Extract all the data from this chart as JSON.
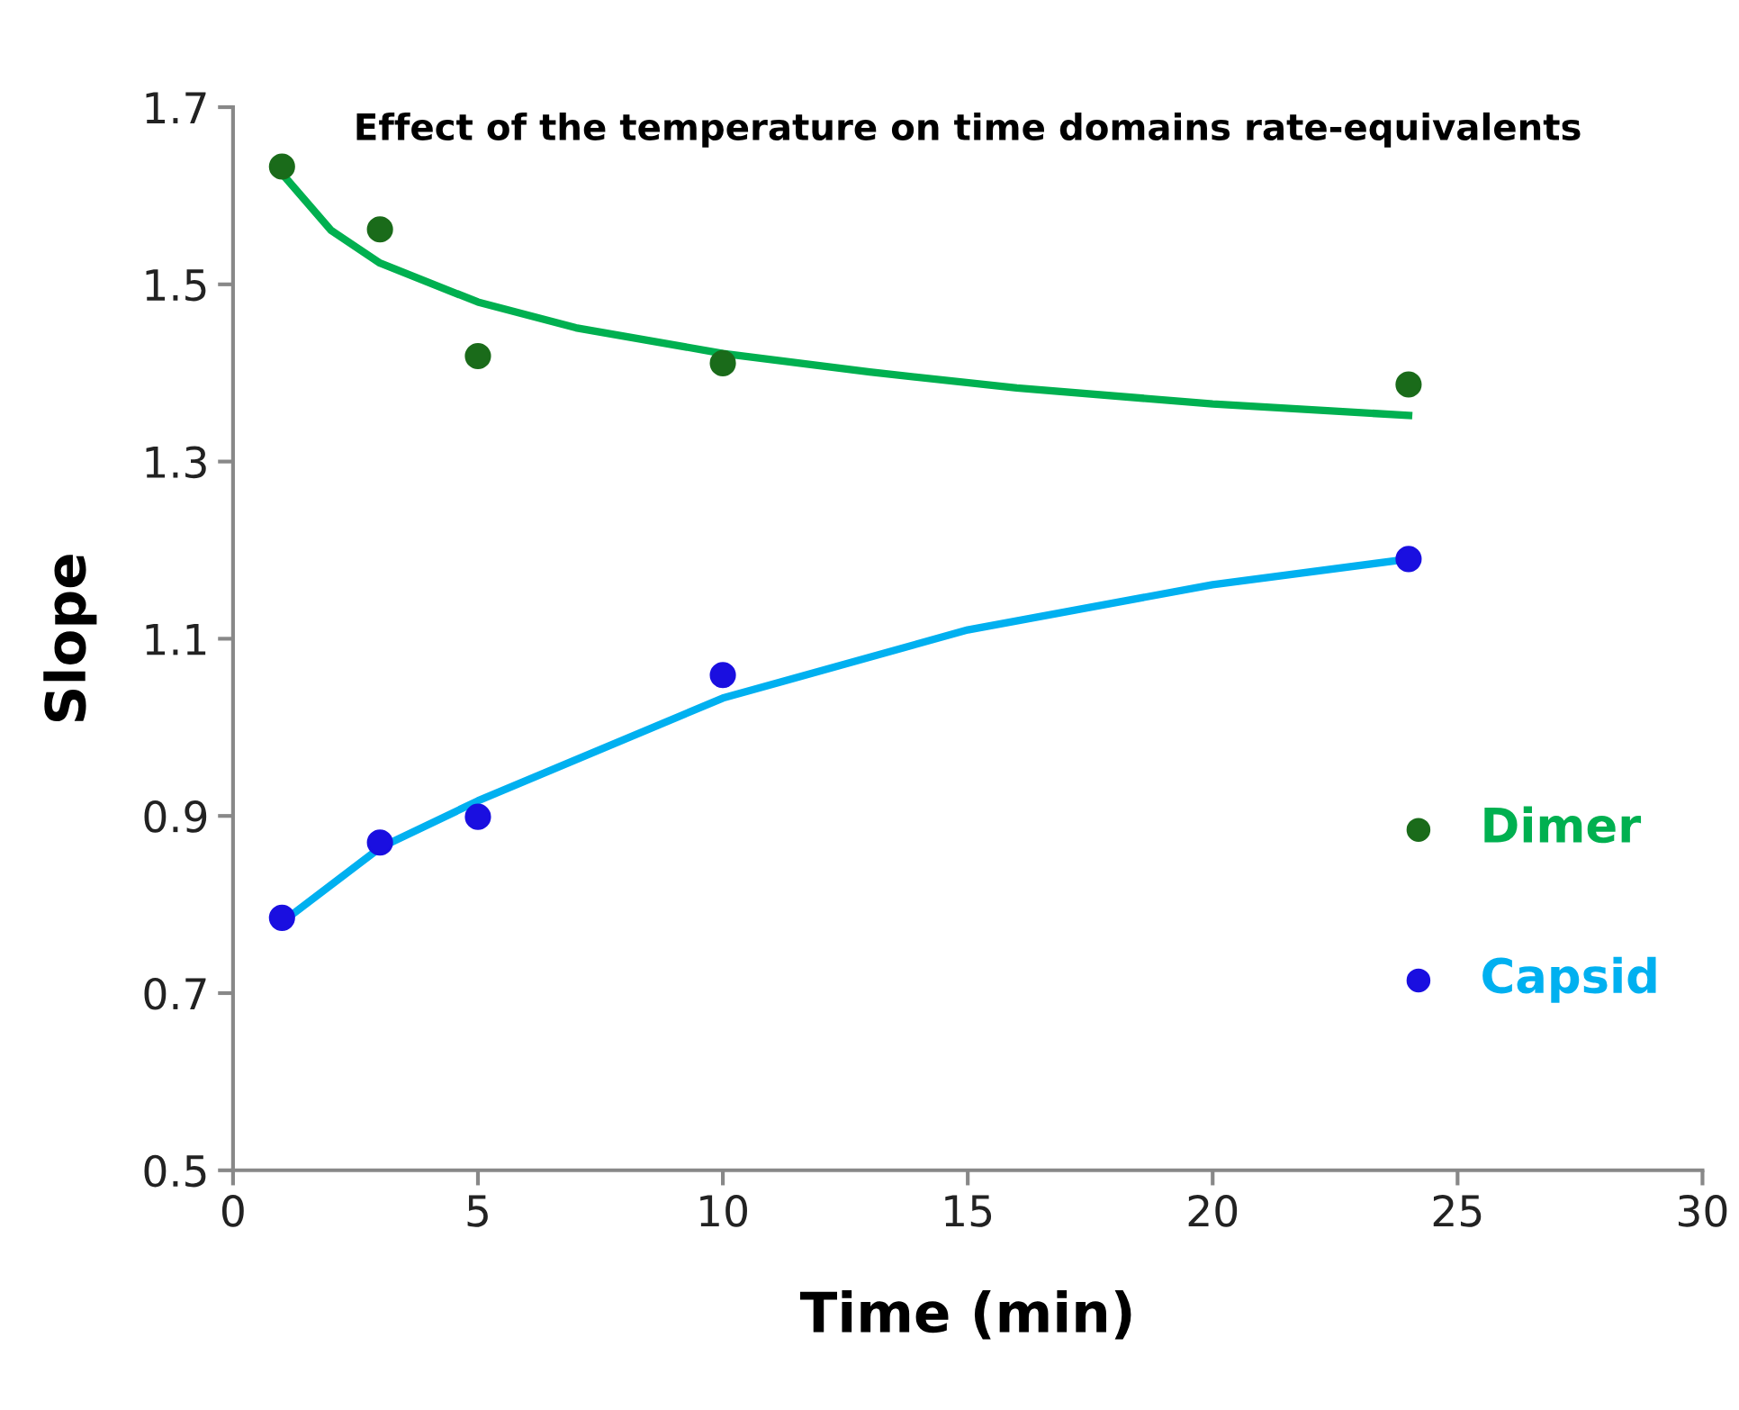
{
  "chart_data": {
    "type": "scatter",
    "title": "Effect of the temperature on time domains rate-equivalents",
    "xlabel": "Time (min)",
    "ylabel": "Slope",
    "xlim": [
      0,
      30
    ],
    "xticks": [
      0,
      5,
      10,
      15,
      20,
      25,
      30
    ],
    "ylim": [
      0.5,
      1.7
    ],
    "yticks": [
      0.5,
      0.7,
      0.9,
      1.1,
      1.3,
      1.5,
      1.7
    ],
    "grid": false,
    "legend": "right",
    "series": [
      {
        "name": "Dimer",
        "color": "#1a6b1a",
        "marker": "circle",
        "x": [
          1,
          3,
          5,
          10,
          24
        ],
        "values": [
          1.633,
          1.562,
          1.419,
          1.411,
          1.387
        ]
      },
      {
        "name": "Capsid",
        "color": "#1a0fe0",
        "marker": "circle",
        "x": [
          1,
          3,
          5,
          10,
          24
        ],
        "values": [
          0.785,
          0.87,
          0.899,
          1.059,
          1.19
        ]
      },
      {
        "type": "line",
        "color": "#00b050",
        "line_style": "solid",
        "marker": "none",
        "x": [
          1,
          2,
          3,
          5,
          7,
          10,
          13,
          16,
          20,
          24
        ],
        "values": [
          1.625,
          1.561,
          1.524,
          1.48,
          1.451,
          1.422,
          1.401,
          1.383,
          1.365,
          1.352
        ]
      },
      {
        "type": "line",
        "color": "#00b0f0",
        "line_style": "solid",
        "marker": "none",
        "x": [
          1,
          3,
          5,
          10,
          15,
          20,
          24
        ],
        "values": [
          0.78,
          0.864,
          0.917,
          1.033,
          1.11,
          1.161,
          1.19
        ]
      }
    ]
  }
}
